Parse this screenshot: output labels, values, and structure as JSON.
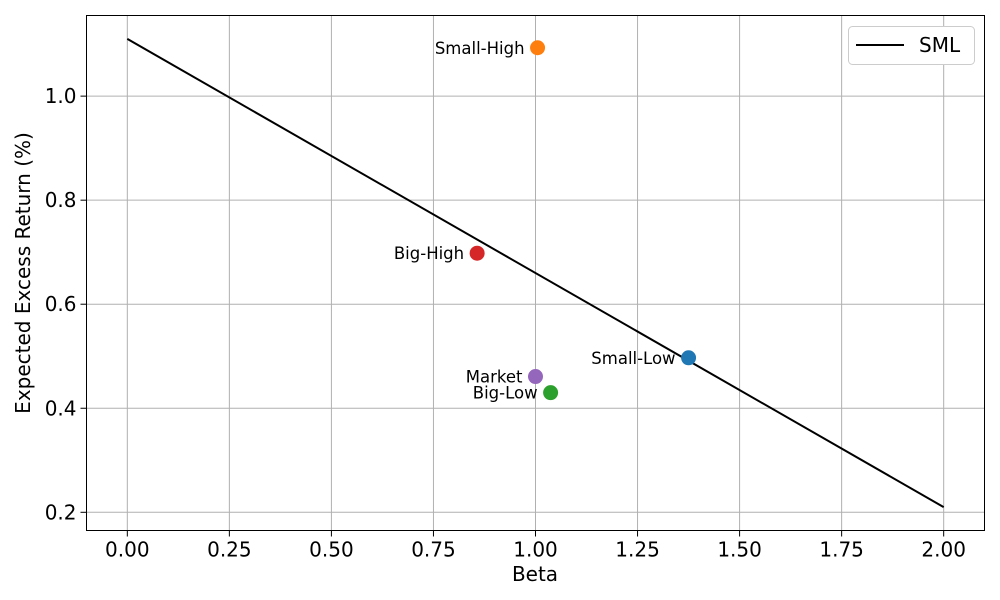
{
  "chart_data": {
    "type": "scatter",
    "title": "",
    "xlabel": "Beta",
    "ylabel": "Expected Excess Return (%)",
    "xlim": [
      -0.1,
      2.1
    ],
    "ylim": [
      0.165,
      1.155
    ],
    "xticks": [
      0.0,
      0.25,
      0.5,
      0.75,
      1.0,
      1.25,
      1.5,
      1.75,
      2.0
    ],
    "xtick_labels": [
      "0.00",
      "0.25",
      "0.50",
      "0.75",
      "1.00",
      "1.25",
      "1.50",
      "1.75",
      "2.00"
    ],
    "yticks": [
      0.2,
      0.4,
      0.6,
      0.8,
      1.0
    ],
    "ytick_labels": [
      "0.2",
      "0.4",
      "0.6",
      "0.8",
      "1.0"
    ],
    "grid": true,
    "legend": {
      "position": "top-right",
      "entries": [
        "SML"
      ]
    },
    "line": {
      "name": "SML",
      "color": "#000000",
      "x": [
        0.0,
        2.0
      ],
      "y": [
        1.11,
        0.21
      ]
    },
    "points": [
      {
        "label": "Small-Low",
        "x": 1.375,
        "y": 0.497,
        "color": "#1f77b4"
      },
      {
        "label": "Small-High",
        "x": 1.005,
        "y": 1.093,
        "color": "#ff7f0e"
      },
      {
        "label": "Big-Low",
        "x": 1.037,
        "y": 0.43,
        "color": "#2ca02c"
      },
      {
        "label": "Big-High",
        "x": 0.857,
        "y": 0.698,
        "color": "#d62728"
      },
      {
        "label": "Market",
        "x": 1.0,
        "y": 0.461,
        "color": "#9467bd"
      }
    ]
  }
}
